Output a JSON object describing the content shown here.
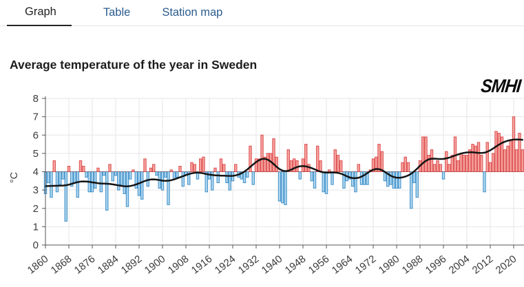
{
  "tabs": [
    {
      "label": "Graph",
      "active": true
    },
    {
      "label": "Table",
      "active": false
    },
    {
      "label": "Station map",
      "active": false
    }
  ],
  "title": "Average temperature of the year in Sweden",
  "logo_text": "SMHI",
  "chart_data": {
    "type": "bar",
    "title": "Average temperature of the year in Sweden",
    "xlabel": "",
    "ylabel": "°C",
    "ylim": [
      0,
      8
    ],
    "yticks": [
      0,
      1,
      2,
      3,
      4,
      5,
      6,
      7,
      8
    ],
    "xticks": [
      1860,
      1868,
      1876,
      1884,
      1892,
      1900,
      1908,
      1916,
      1924,
      1932,
      1940,
      1948,
      1956,
      1964,
      1972,
      1980,
      1988,
      1996,
      2004,
      2012,
      2020
    ],
    "grid": true,
    "legend": false,
    "baseline": 4.0,
    "year_start": 1860,
    "year_end": 2023,
    "values": [
      2.8,
      3.4,
      2.6,
      4.6,
      2.9,
      3.3,
      3.6,
      1.3,
      4.3,
      3.2,
      3.4,
      2.6,
      4.6,
      4.3,
      3.7,
      2.9,
      2.9,
      3.1,
      4.2,
      2.9,
      3.8,
      1.9,
      4.4,
      3.5,
      3.8,
      3.0,
      3.3,
      2.8,
      2.1,
      3.6,
      4.1,
      3.1,
      2.7,
      2.5,
      4.7,
      3.2,
      4.2,
      4.4,
      3.8,
      3.1,
      3.0,
      3.7,
      2.2,
      4.1,
      3.6,
      3.7,
      4.3,
      3.2,
      3.8,
      3.3,
      4.5,
      4.4,
      3.6,
      4.7,
      4.8,
      2.9,
      3.6,
      3.0,
      4.2,
      3.4,
      4.7,
      4.4,
      3.4,
      3.0,
      3.5,
      4.4,
      3.7,
      3.6,
      3.4,
      3.7,
      5.4,
      3.3,
      4.7,
      4.7,
      6.0,
      4.8,
      5.0,
      5.0,
      5.8,
      4.8,
      2.4,
      2.3,
      2.2,
      5.2,
      4.6,
      4.7,
      4.6,
      3.6,
      4.7,
      5.5,
      4.4,
      3.5,
      3.1,
      5.4,
      4.6,
      2.9,
      2.8,
      4.1,
      3.3,
      5.2,
      4.9,
      4.6,
      3.1,
      3.5,
      3.6,
      3.2,
      2.9,
      4.4,
      3.3,
      3.3,
      3.3,
      4.1,
      4.7,
      4.8,
      5.5,
      5.1,
      3.5,
      3.2,
      3.3,
      3.1,
      3.1,
      3.1,
      4.5,
      4.8,
      4.5,
      2.0,
      3.4,
      2.6,
      4.6,
      5.9,
      5.9,
      4.9,
      5.2,
      4.4,
      4.6,
      4.4,
      3.6,
      5.1,
      4.4,
      4.9,
      5.9,
      4.6,
      5.0,
      4.9,
      4.9,
      5.2,
      5.5,
      5.4,
      5.6,
      4.9,
      2.9,
      5.6,
      4.5,
      5.0,
      6.2,
      6.1,
      5.9,
      5.2,
      5.4,
      5.7,
      7.0,
      5.2,
      6.1,
      5.2
    ],
    "trend": {
      "type": "smoothed-line",
      "sigma_years": 3.5
    },
    "colors": {
      "bar_above_fill": "#f4a29e",
      "bar_above_stroke": "#dd5050",
      "bar_below_fill": "#abd4ee",
      "bar_below_stroke": "#4090c8",
      "trend_line": "#151515",
      "baseline_dash": "#a04848",
      "grid": "#e6e6e6",
      "axis": "#555555",
      "tick_text": "#3a3a3a"
    }
  }
}
